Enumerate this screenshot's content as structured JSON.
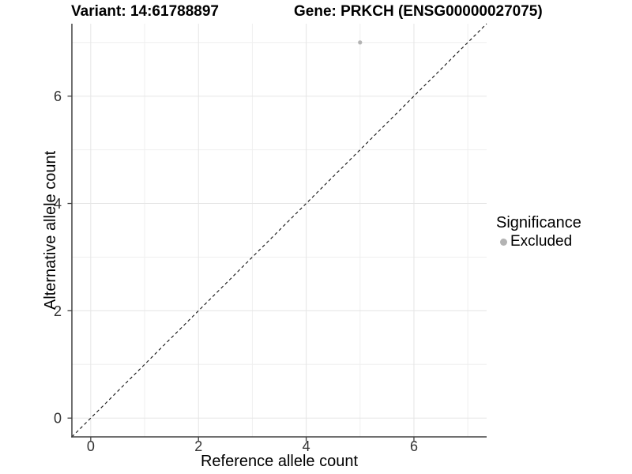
{
  "chart_data": {
    "type": "scatter",
    "title_left": "Variant: 14:61788897",
    "title_right": "Gene: PRKCH (ENSG00000027075)",
    "xlabel": "Reference allele count",
    "ylabel": "Alternative allele count",
    "xlim": [
      -0.35,
      7.35
    ],
    "ylim": [
      -0.35,
      7.35
    ],
    "x_major_ticks": [
      0,
      2,
      4,
      6
    ],
    "x_minor_ticks": [
      1,
      3,
      5,
      7
    ],
    "y_major_ticks": [
      0,
      2,
      4,
      6
    ],
    "y_minor_ticks": [
      1,
      3,
      5,
      7
    ],
    "grid": "on",
    "points": [
      {
        "x": 5,
        "y": 7,
        "series": "Excluded"
      }
    ],
    "identity_line": {
      "style": "dashed",
      "x1": -0.35,
      "y1": -0.35,
      "x2": 7.35,
      "y2": 7.35
    },
    "legend": {
      "title": "Significance",
      "position": "right",
      "items": [
        {
          "label": "Excluded",
          "color": "#b3b3b3",
          "marker": "circle"
        }
      ]
    },
    "style": {
      "background": "#ffffff",
      "point_color": "#b3b3b3",
      "grid_major_color": "#e5e5e5",
      "grid_minor_color": "#efefef",
      "axis_line_color": "#404040",
      "tick_mark_color": "#404040",
      "tick_text_color": "#333333",
      "identity_line_color": "#111111"
    }
  }
}
